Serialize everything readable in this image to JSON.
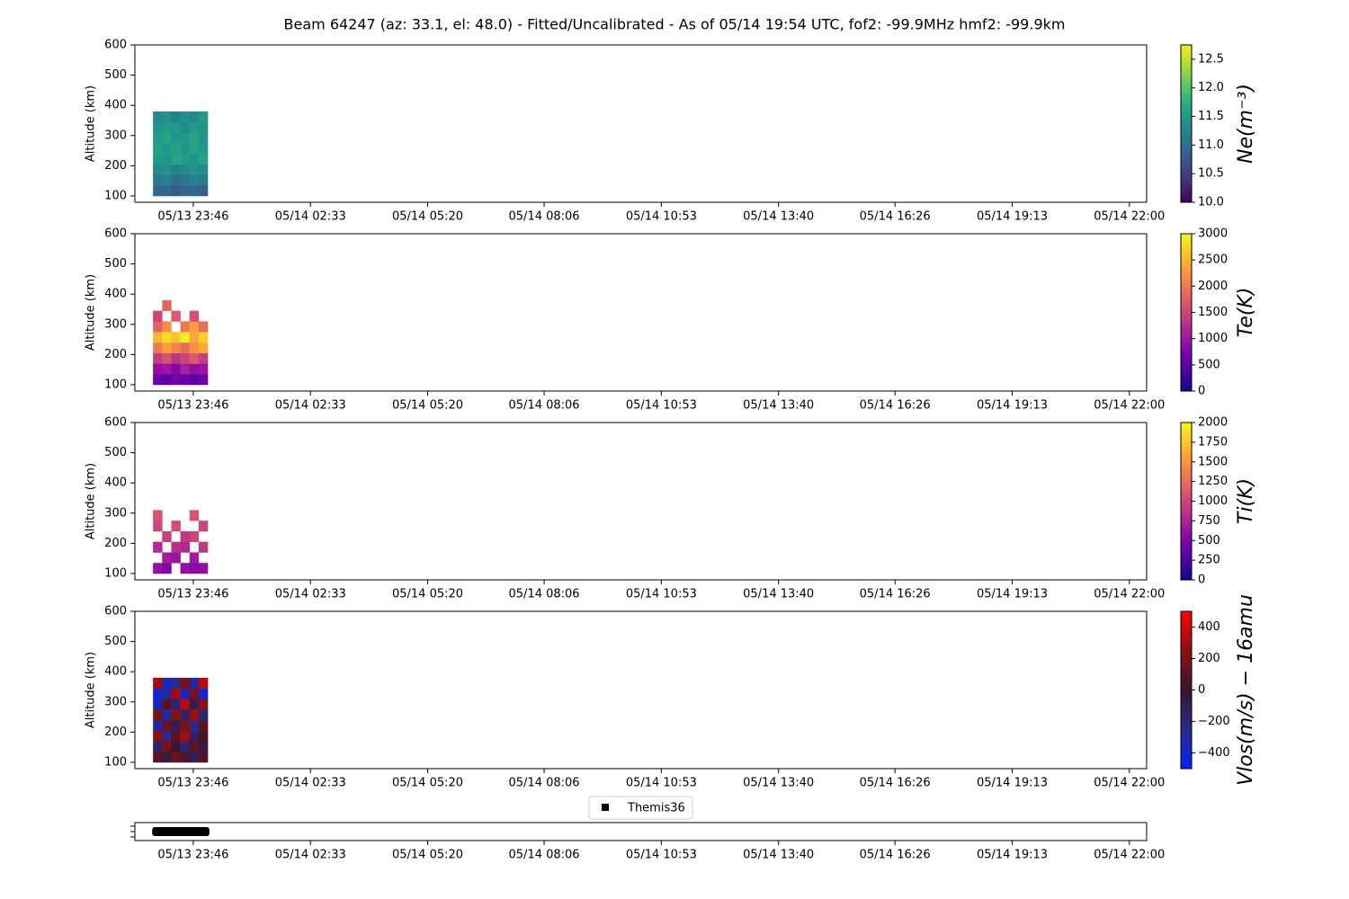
{
  "chart_data": [
    {
      "type": "heatmap",
      "title": "Beam 64247 (az: 33.1, el: 48.0) - Fitted/Uncalibrated - As of 05/14 19:54 UTC, fof2: -99.9MHz  hmf2: -99.9km",
      "ylabel": "Altitude (km)",
      "colorbar_label": "Ne(m⁻³)",
      "colormap": "viridis",
      "xlim": [
        22.38,
        46.41
      ],
      "xticks": [
        {
          "value": 23.767,
          "label": "05/13 23:46"
        },
        {
          "value": 26.55,
          "label": "05/14 02:33"
        },
        {
          "value": 29.333,
          "label": "05/14 05:20"
        },
        {
          "value": 32.1,
          "label": "05/14 08:06"
        },
        {
          "value": 34.883,
          "label": "05/14 10:53"
        },
        {
          "value": 37.667,
          "label": "05/14 13:40"
        },
        {
          "value": 40.433,
          "label": "05/14 16:26"
        },
        {
          "value": 43.217,
          "label": "05/14 19:13"
        },
        {
          "value": 46,
          "label": "05/14 22:00"
        }
      ],
      "ylim": [
        79,
        600
      ],
      "yticks": [
        100,
        200,
        300,
        400,
        500,
        600
      ],
      "x": [
        22.81,
        23.027,
        23.243,
        23.46,
        23.677,
        23.893,
        24.11
      ],
      "y": [
        100,
        135,
        170,
        205,
        240,
        275,
        310,
        345,
        380
      ],
      "clim": [
        10,
        12.75
      ],
      "cticks": [
        {
          "value": 10,
          "label": "10.0"
        },
        {
          "value": 10.5,
          "label": "10.5"
        },
        {
          "value": 11,
          "label": "11.0"
        },
        {
          "value": 11.5,
          "label": "11.5"
        },
        {
          "value": 12,
          "label": "12.0"
        },
        {
          "value": 12.5,
          "label": "12.5"
        }
      ],
      "values": [
        [
          10.9,
          10.9,
          10.8,
          10.9,
          10.9,
          10.8
        ],
        [
          11.1,
          11.2,
          11.0,
          11.1,
          11.2,
          11.1
        ],
        [
          11.3,
          11.4,
          11.2,
          11.3,
          11.4,
          11.3
        ],
        [
          11.5,
          11.4,
          11.6,
          11.5,
          11.4,
          11.6
        ],
        [
          11.6,
          11.5,
          11.6,
          11.4,
          11.6,
          11.5
        ],
        [
          11.5,
          11.6,
          11.4,
          11.5,
          11.6,
          11.4
        ],
        [
          11.4,
          11.5,
          11.5,
          11.3,
          11.5,
          11.4
        ],
        [
          11.3,
          11.4,
          11.2,
          11.4,
          11.3,
          11.5
        ]
      ]
    },
    {
      "type": "heatmap",
      "ylabel": "Altitude (km)",
      "colorbar_label": "Te(K)",
      "colormap": "plasma",
      "xlim": [
        22.38,
        46.41
      ],
      "xticks": [
        {
          "value": 23.767,
          "label": "05/13 23:46"
        },
        {
          "value": 26.55,
          "label": "05/14 02:33"
        },
        {
          "value": 29.333,
          "label": "05/14 05:20"
        },
        {
          "value": 32.1,
          "label": "05/14 08:06"
        },
        {
          "value": 34.883,
          "label": "05/14 10:53"
        },
        {
          "value": 37.667,
          "label": "05/14 13:40"
        },
        {
          "value": 40.433,
          "label": "05/14 16:26"
        },
        {
          "value": 43.217,
          "label": "05/14 19:13"
        },
        {
          "value": 46,
          "label": "05/14 22:00"
        }
      ],
      "ylim": [
        79,
        600
      ],
      "yticks": [
        100,
        200,
        300,
        400,
        500,
        600
      ],
      "x": [
        22.81,
        23.027,
        23.243,
        23.46,
        23.677,
        23.893,
        24.11
      ],
      "y": [
        100,
        135,
        170,
        205,
        240,
        275,
        310,
        345,
        380
      ],
      "clim": [
        0,
        3000
      ],
      "cticks": [
        0,
        500,
        1000,
        1500,
        2000,
        2500,
        3000
      ],
      "values": [
        [
          600,
          500,
          700,
          600,
          500,
          600
        ],
        [
          900,
          1000,
          800,
          1100,
          900,
          1000
        ],
        [
          1400,
          1600,
          1300,
          1500,
          1700,
          1400
        ],
        [
          2000,
          2300,
          2100,
          1900,
          2200,
          2400
        ],
        [
          2500,
          2800,
          2600,
          2900,
          2400,
          2700
        ],
        [
          1800,
          2200,
          null,
          2000,
          2300,
          1900
        ],
        [
          1500,
          null,
          1700,
          null,
          1600,
          null
        ],
        [
          null,
          1800,
          null,
          null,
          null,
          null
        ]
      ]
    },
    {
      "type": "heatmap",
      "ylabel": "Altitude (km)",
      "colorbar_label": "Ti(K)",
      "colormap": "plasma",
      "xlim": [
        22.38,
        46.41
      ],
      "xticks": [
        {
          "value": 23.767,
          "label": "05/13 23:46"
        },
        {
          "value": 26.55,
          "label": "05/14 02:33"
        },
        {
          "value": 29.333,
          "label": "05/14 05:20"
        },
        {
          "value": 32.1,
          "label": "05/14 08:06"
        },
        {
          "value": 34.883,
          "label": "05/14 10:53"
        },
        {
          "value": 37.667,
          "label": "05/14 13:40"
        },
        {
          "value": 40.433,
          "label": "05/14 16:26"
        },
        {
          "value": 43.217,
          "label": "05/14 19:13"
        },
        {
          "value": 46,
          "label": "05/14 22:00"
        }
      ],
      "ylim": [
        79,
        600
      ],
      "yticks": [
        100,
        200,
        300,
        400,
        500,
        600
      ],
      "x": [
        22.81,
        23.027,
        23.243,
        23.46,
        23.677,
        23.893,
        24.11
      ],
      "y": [
        100,
        135,
        170,
        205,
        240,
        275,
        310,
        345,
        380
      ],
      "clim": [
        0,
        2000
      ],
      "cticks": [
        0,
        250,
        500,
        750,
        1000,
        1250,
        1500,
        1750,
        2000
      ],
      "values": [
        [
          600,
          500,
          null,
          600,
          550,
          600
        ],
        [
          null,
          700,
          650,
          null,
          700,
          null
        ],
        [
          800,
          null,
          850,
          800,
          null,
          900
        ],
        [
          null,
          950,
          null,
          900,
          1000,
          null
        ],
        [
          1000,
          null,
          1050,
          null,
          null,
          1000
        ],
        [
          1100,
          null,
          null,
          null,
          1100,
          null
        ],
        [
          null,
          null,
          null,
          null,
          null,
          null
        ],
        [
          null,
          null,
          null,
          null,
          null,
          null
        ]
      ]
    },
    {
      "type": "heatmap",
      "ylabel": "Altitude (km)",
      "colorbar_label": "Vlos(m/s) − 16amu",
      "colormap": "bwr_dark",
      "xlim": [
        22.38,
        46.41
      ],
      "xticks": [
        {
          "value": 23.767,
          "label": "05/13 23:46"
        },
        {
          "value": 26.55,
          "label": "05/14 02:33"
        },
        {
          "value": 29.333,
          "label": "05/14 05:20"
        },
        {
          "value": 32.1,
          "label": "05/14 08:06"
        },
        {
          "value": 34.883,
          "label": "05/14 10:53"
        },
        {
          "value": 37.667,
          "label": "05/14 13:40"
        },
        {
          "value": 40.433,
          "label": "05/14 16:26"
        },
        {
          "value": 43.217,
          "label": "05/14 19:13"
        },
        {
          "value": 46,
          "label": "05/14 22:00"
        }
      ],
      "ylim": [
        79,
        600
      ],
      "yticks": [
        100,
        200,
        300,
        400,
        500,
        600
      ],
      "x": [
        22.81,
        23.027,
        23.243,
        23.46,
        23.677,
        23.893,
        24.11
      ],
      "y": [
        100,
        135,
        170,
        205,
        240,
        275,
        310,
        345,
        380
      ],
      "clim": [
        -500,
        500
      ],
      "cticks": [
        {
          "value": -400,
          "label": "−400"
        },
        {
          "value": -200,
          "label": "−200"
        },
        0,
        200,
        400
      ],
      "values": [
        [
          100,
          -50,
          150,
          50,
          -100,
          80
        ],
        [
          -150,
          200,
          0,
          -200,
          120,
          -50
        ],
        [
          250,
          -250,
          100,
          300,
          -150,
          50
        ],
        [
          -300,
          150,
          -100,
          200,
          -250,
          100
        ],
        [
          200,
          -300,
          250,
          -150,
          300,
          -200
        ],
        [
          -350,
          100,
          -200,
          350,
          -100,
          250
        ],
        [
          -400,
          -300,
          300,
          -350,
          200,
          -400
        ],
        [
          300,
          -350,
          -250,
          200,
          -300,
          350
        ]
      ]
    },
    {
      "type": "timeline",
      "legend": "Themis36",
      "color": "#000000",
      "xlim": [
        22.38,
        46.41
      ],
      "xticks": [
        {
          "value": 23.767,
          "label": "05/13 23:46"
        },
        {
          "value": 26.55,
          "label": "05/14 02:33"
        },
        {
          "value": 29.333,
          "label": "05/14 05:20"
        },
        {
          "value": 32.1,
          "label": "05/14 08:06"
        },
        {
          "value": 34.883,
          "label": "05/14 10:53"
        },
        {
          "value": 37.667,
          "label": "05/14 13:40"
        },
        {
          "value": 40.433,
          "label": "05/14 16:26"
        },
        {
          "value": 43.217,
          "label": "05/14 19:13"
        },
        {
          "value": 46,
          "label": "05/14 22:00"
        }
      ],
      "x": [
        22.79,
        24.15
      ]
    }
  ]
}
